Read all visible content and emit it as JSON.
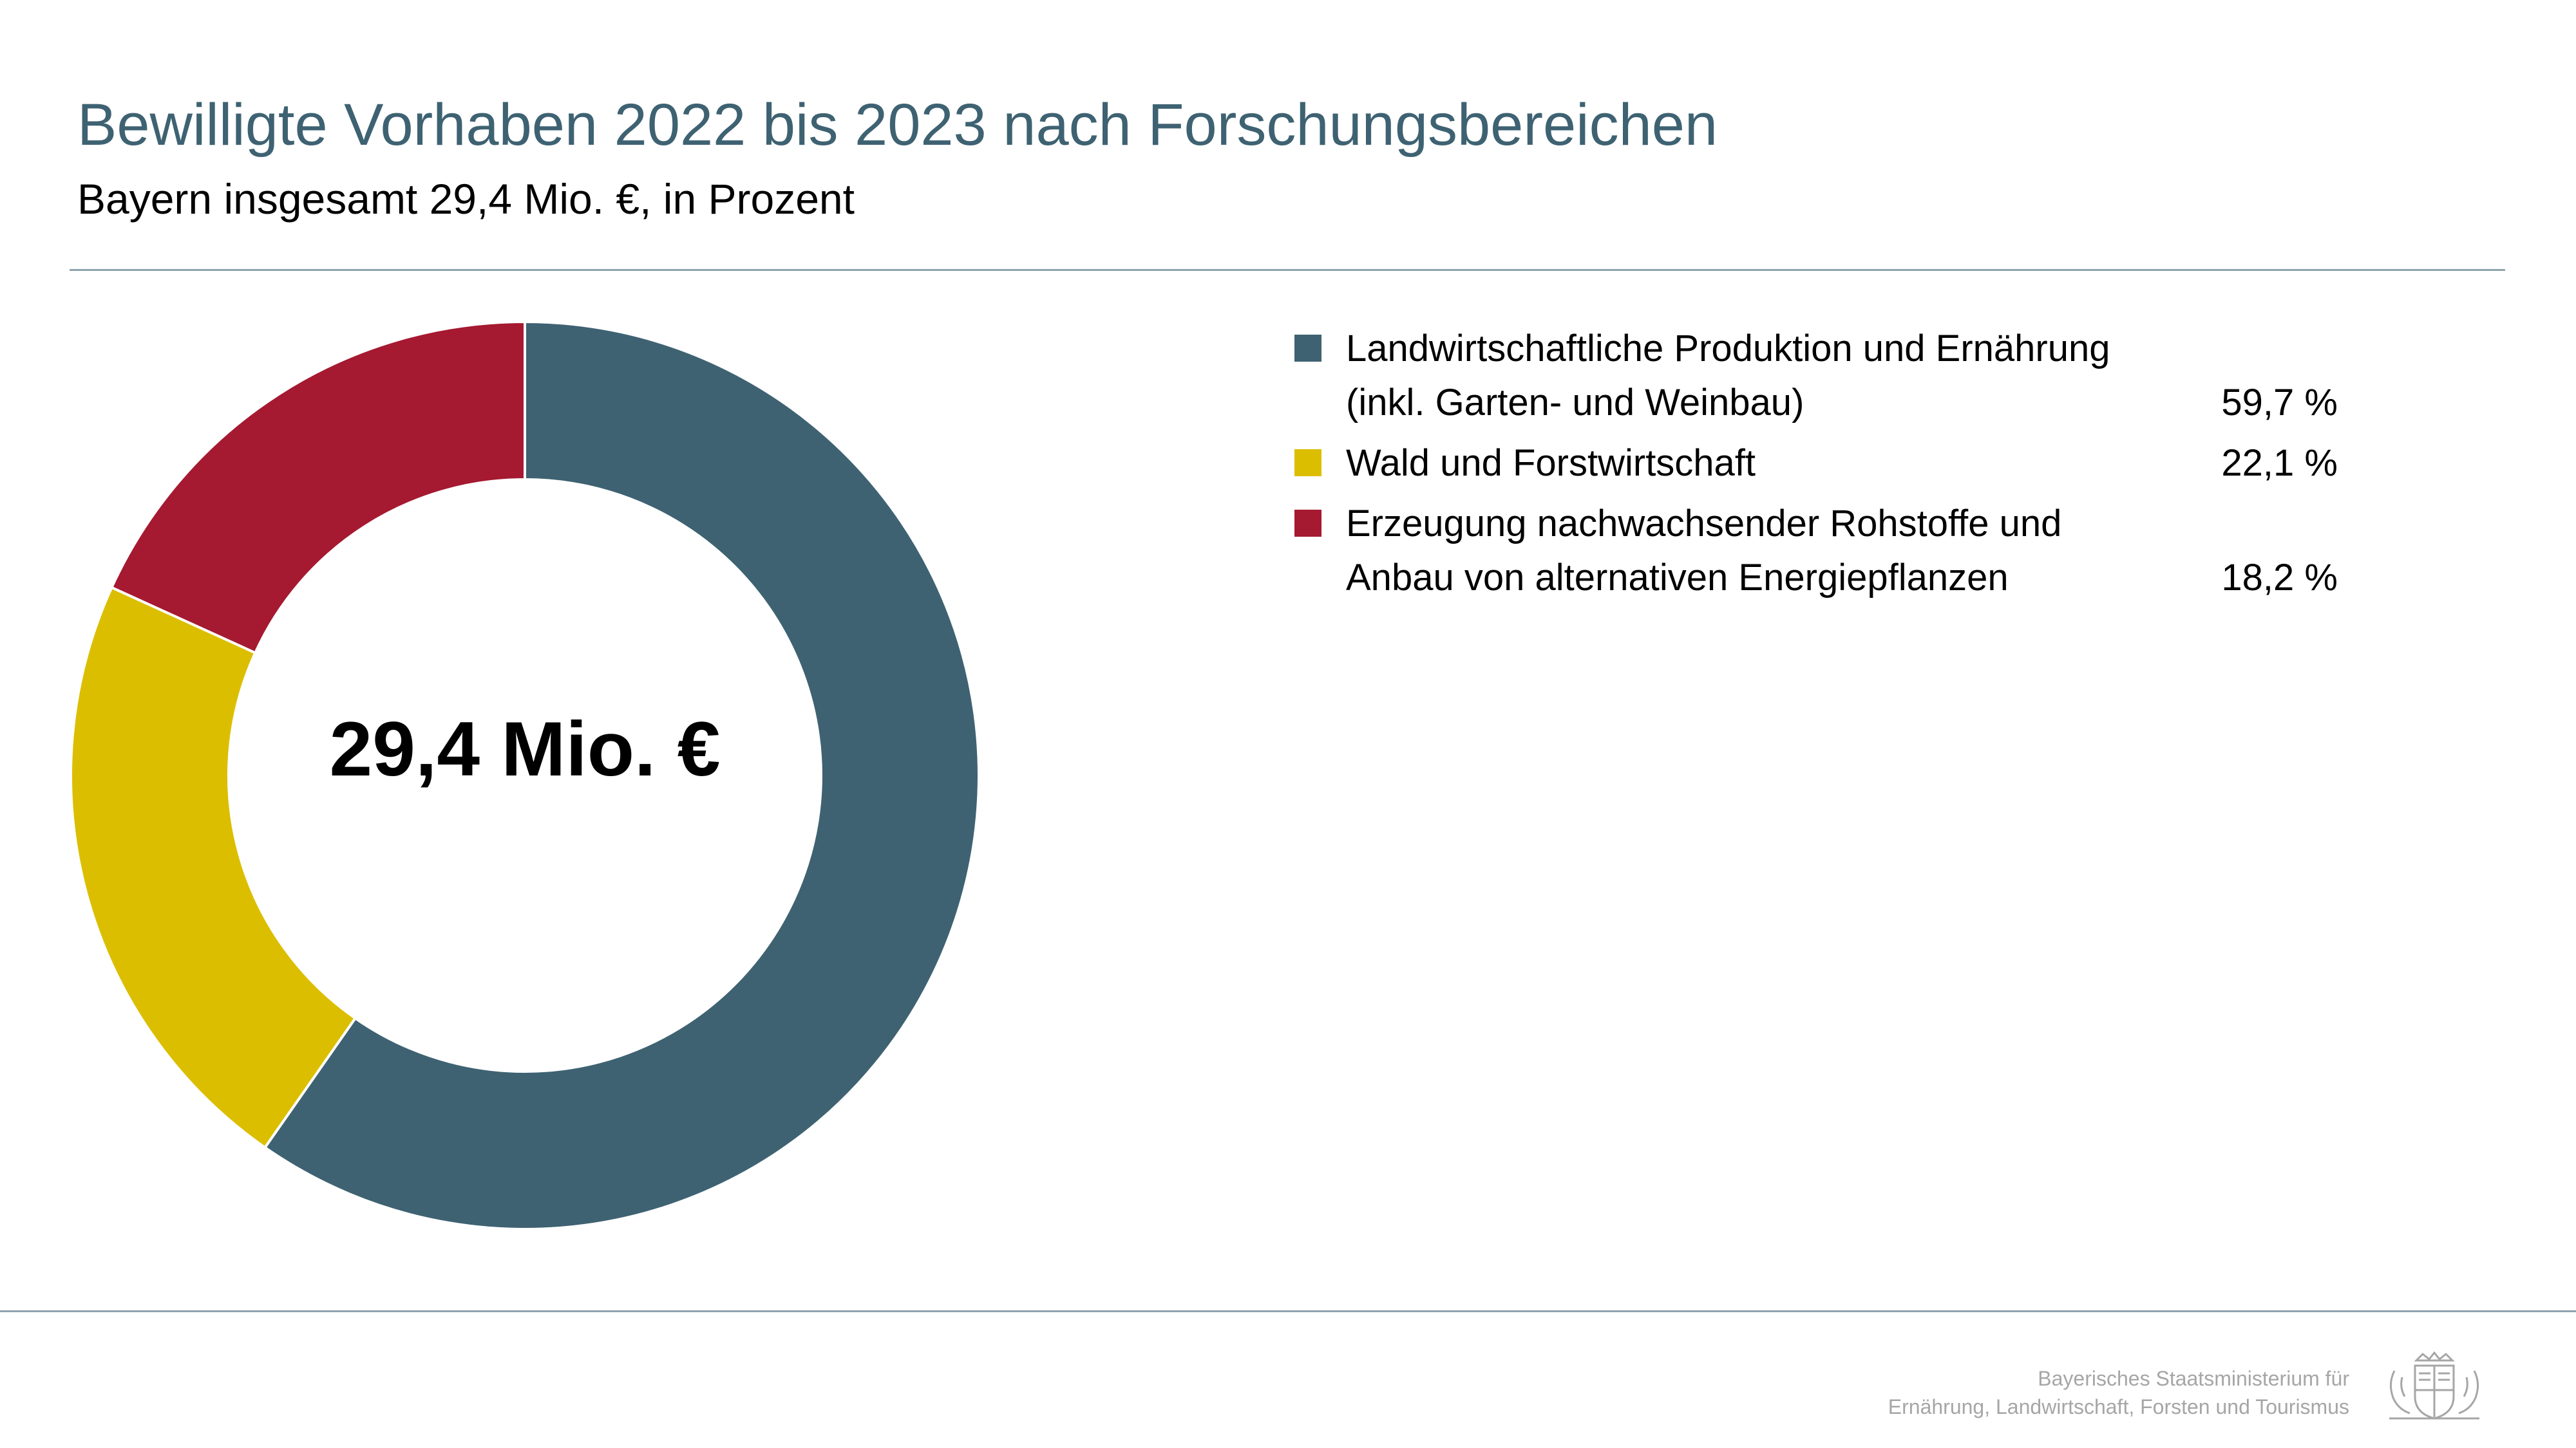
{
  "chart_data": {
    "type": "pie",
    "style": "donut",
    "title": "Bewilligte Vorhaben 2022 bis 2023 nach Forschungsbereichen",
    "subtitle": "Bayern insgesamt 29,4 Mio. €, in Prozent",
    "center_label": "29,4 Mio. €",
    "legend_position": "right",
    "slices": [
      {
        "label_lines": [
          "Landwirtschaftliche Produktion und Ernährung",
          "(inkl. Garten- und Weinbau)"
        ],
        "value": 59.7,
        "value_label": "59,7 %",
        "color": "#3e6272"
      },
      {
        "label_lines": [
          "Wald und Forstwirtschaft"
        ],
        "value": 22.1,
        "value_label": "22,1 %",
        "color": "#dcbe00"
      },
      {
        "label_lines": [
          "Erzeugung nachwachsender Rohstoffe und",
          "Anbau von alternativen Energiepflanzen"
        ],
        "value": 18.2,
        "value_label": "18,2 %",
        "color": "#a51931"
      }
    ]
  },
  "footer": {
    "line1": "Bayerisches Staatsministerium für",
    "line2": "Ernährung, Landwirtschaft, Forsten und Tourismus",
    "logo_icon": "bavarian-coat-of-arms-icon"
  }
}
